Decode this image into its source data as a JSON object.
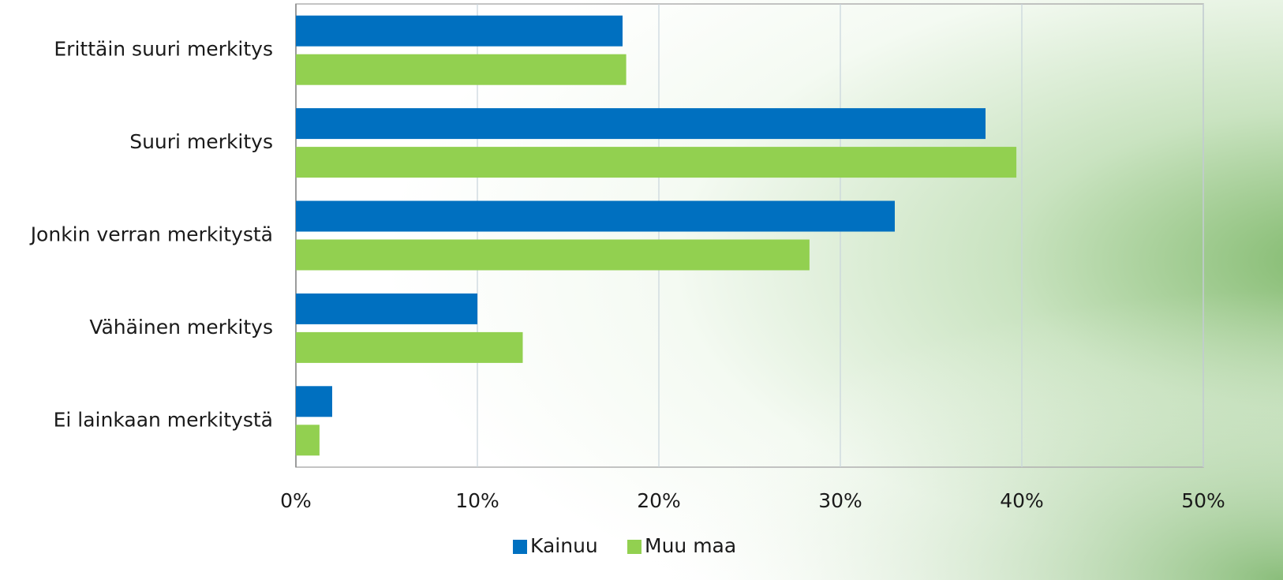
{
  "chart_data": {
    "type": "hbar",
    "categories": [
      "Erittäin suuri merkitys",
      "Suuri merkitys",
      "Jonkin verran merkitystä",
      "Vähäinen merkitys",
      "Ei lainkaan merkitystä"
    ],
    "series": [
      {
        "name": "Kainuu",
        "color": "#0070c0",
        "values": [
          18.0,
          38.0,
          33.0,
          10.0,
          2.0
        ]
      },
      {
        "name": "Muu maa",
        "color": "#92d050",
        "values": [
          18.2,
          39.7,
          28.3,
          12.5,
          1.3
        ]
      }
    ],
    "xlim": [
      0,
      50
    ],
    "xticks": [
      {
        "value": 0,
        "label": "0%"
      },
      {
        "value": 10,
        "label": "10%"
      },
      {
        "value": 20,
        "label": "20%"
      },
      {
        "value": 30,
        "label": "30%"
      },
      {
        "value": 40,
        "label": "40%"
      },
      {
        "value": 50,
        "label": "50%"
      }
    ],
    "grid": true,
    "legend": "bottom"
  }
}
